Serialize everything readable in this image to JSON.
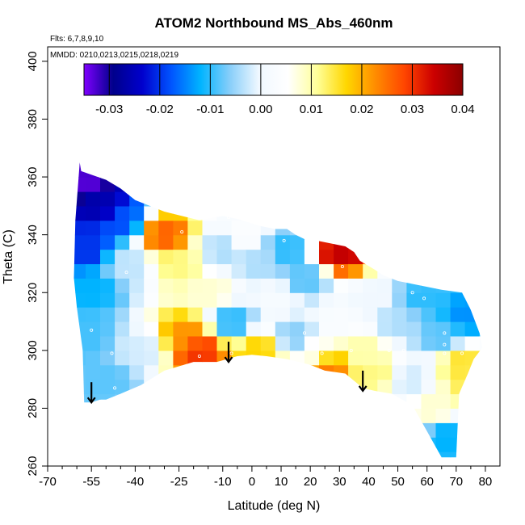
{
  "chart_data": {
    "type": "heatmap",
    "title": "ATOM2 Northbound MS_Abs_460nm",
    "subtitle_flights": "Flts: 6,7,8,9,10",
    "subtitle_dates": "MMDD: 0210,0213,0215,0218,0219",
    "xlabel": "Latitude (deg N)",
    "ylabel": "Theta (C)",
    "xlim": [
      -70,
      85
    ],
    "ylim": [
      260,
      405
    ],
    "x_ticks": [
      -70,
      -55,
      -40,
      -25,
      -10,
      0,
      10,
      20,
      30,
      40,
      50,
      60,
      70,
      80
    ],
    "x_tick_labels": [
      "-70",
      "-55",
      "-40",
      "-25",
      "-10",
      "0",
      "10",
      "20",
      "30",
      "40",
      "50",
      "60",
      "70",
      "80"
    ],
    "x_minor_ticks": [
      -65,
      -60,
      -50,
      -45,
      -35,
      -30,
      -20,
      -15,
      -5,
      5,
      15,
      25,
      35,
      45,
      55,
      65,
      75
    ],
    "y_ticks": [
      260,
      280,
      300,
      320,
      340,
      360,
      380,
      400
    ],
    "y_tick_labels": [
      "260",
      "280",
      "300",
      "320",
      "340",
      "360",
      "380",
      "400"
    ],
    "colorbar": {
      "min": -0.035,
      "max": 0.04,
      "ticks": [
        -0.03,
        -0.02,
        -0.01,
        0.0,
        0.01,
        0.02,
        0.03,
        0.04
      ],
      "tick_labels": [
        "-0.03",
        "-0.02",
        "-0.01",
        "0.00",
        "0.01",
        "0.02",
        "0.03",
        "0.04"
      ],
      "colors": [
        "#7F00FF",
        "#00008B",
        "#0000CD",
        "#0055FF",
        "#00B4FF",
        "#87CEFA",
        "#F0F8FF",
        "#FFFFFF",
        "#FFFF99",
        "#FFD700",
        "#FF8C00",
        "#FF4500",
        "#CC0000",
        "#8B0000"
      ]
    },
    "boundary": {
      "lat": [
        -59,
        -58.5,
        -50,
        -45,
        -40,
        -30,
        -18,
        -10,
        -5,
        3,
        8,
        10,
        12,
        15,
        18,
        22,
        27,
        32,
        35,
        37,
        42,
        45,
        50,
        55,
        60,
        65,
        72,
        73.5,
        75,
        76.5,
        78,
        79,
        76,
        74,
        71,
        70,
        65,
        60,
        55,
        48,
        42,
        38,
        32,
        25,
        20,
        12,
        5,
        0,
        -5,
        -12,
        -20,
        -30,
        -38,
        -45,
        -50,
        -52,
        -55,
        -57.5,
        -58,
        -60,
        -61,
        -60.5
      ],
      "theta": [
        365,
        362,
        359,
        356,
        352,
        348,
        345,
        346.5,
        345.5,
        343,
        342,
        342,
        342,
        340,
        338.5,
        338,
        337,
        336,
        334,
        331,
        328,
        326,
        324,
        323,
        322,
        321,
        320,
        317,
        314,
        310,
        306,
        301,
        297,
        292,
        285,
        263,
        263,
        272,
        281,
        285,
        286,
        287,
        292,
        293,
        295,
        297,
        298,
        298.5,
        298,
        296,
        296,
        293,
        288,
        285,
        283,
        283,
        282,
        282,
        300,
        315,
        325,
        345
      ]
    },
    "field_samples": [
      {
        "lat": -57,
        "theta": 358,
        "value": -0.033
      },
      {
        "lat": -52,
        "theta": 350,
        "value": -0.026
      },
      {
        "lat": -45,
        "theta": 345,
        "value": -0.018
      },
      {
        "lat": -56,
        "theta": 335,
        "value": -0.02
      },
      {
        "lat": -55,
        "theta": 322,
        "value": -0.012
      },
      {
        "lat": -57,
        "theta": 305,
        "value": -0.009
      },
      {
        "lat": -50,
        "theta": 290,
        "value": -0.008
      },
      {
        "lat": -43,
        "theta": 330,
        "value": -0.003
      },
      {
        "lat": -38,
        "theta": 300,
        "value": -0.002
      },
      {
        "lat": -30,
        "theta": 340,
        "value": 0.026
      },
      {
        "lat": -25,
        "theta": 330,
        "value": 0.012
      },
      {
        "lat": -22,
        "theta": 305,
        "value": 0.022
      },
      {
        "lat": -18,
        "theta": 300,
        "value": 0.03
      },
      {
        "lat": -14,
        "theta": 320,
        "value": 0.008
      },
      {
        "lat": -10,
        "theta": 335,
        "value": -0.004
      },
      {
        "lat": -7,
        "theta": 310,
        "value": -0.01
      },
      {
        "lat": -3,
        "theta": 340,
        "value": 0.004
      },
      {
        "lat": 3,
        "theta": 330,
        "value": -0.004
      },
      {
        "lat": 2,
        "theta": 300,
        "value": 0.017
      },
      {
        "lat": 8,
        "theta": 318,
        "value": 0.002
      },
      {
        "lat": 12,
        "theta": 335,
        "value": -0.01
      },
      {
        "lat": 15,
        "theta": 305,
        "value": -0.006
      },
      {
        "lat": 18,
        "theta": 325,
        "value": -0.008
      },
      {
        "lat": 22,
        "theta": 300,
        "value": 0.006
      },
      {
        "lat": 26,
        "theta": 294,
        "value": 0.024
      },
      {
        "lat": 30,
        "theta": 334,
        "value": 0.035
      },
      {
        "lat": 30,
        "theta": 310,
        "value": 0.003
      },
      {
        "lat": 38,
        "theta": 300,
        "value": 0.01
      },
      {
        "lat": 42,
        "theta": 318,
        "value": 0.0
      },
      {
        "lat": 42,
        "theta": 292,
        "value": 0.012
      },
      {
        "lat": 50,
        "theta": 310,
        "value": -0.004
      },
      {
        "lat": 54,
        "theta": 290,
        "value": -0.002
      },
      {
        "lat": 58,
        "theta": 318,
        "value": -0.01
      },
      {
        "lat": 62,
        "theta": 280,
        "value": 0.008
      },
      {
        "lat": 65,
        "theta": 305,
        "value": -0.008
      },
      {
        "lat": 67,
        "theta": 270,
        "value": -0.012
      },
      {
        "lat": 72,
        "theta": 296,
        "value": 0.015
      },
      {
        "lat": 73,
        "theta": 312,
        "value": -0.014
      },
      {
        "lat": 76,
        "theta": 288,
        "value": 0.014
      }
    ],
    "sample_points": [
      {
        "lat": -55,
        "theta": 307
      },
      {
        "lat": -48,
        "theta": 299
      },
      {
        "lat": -47,
        "theta": 287
      },
      {
        "lat": -24,
        "theta": 341
      },
      {
        "lat": -8,
        "theta": 346
      },
      {
        "lat": -18,
        "theta": 298
      },
      {
        "lat": -7,
        "theta": 299
      },
      {
        "lat": 11,
        "theta": 338
      },
      {
        "lat": 18,
        "theta": 306
      },
      {
        "lat": 28,
        "theta": 292
      },
      {
        "lat": 31,
        "theta": 329
      },
      {
        "lat": 34,
        "theta": 300
      },
      {
        "lat": 47,
        "theta": 300
      },
      {
        "lat": 52,
        "theta": 300
      },
      {
        "lat": 55,
        "theta": 320
      },
      {
        "lat": 59,
        "theta": 318
      },
      {
        "lat": 66,
        "theta": 306
      },
      {
        "lat": 66,
        "theta": 302
      },
      {
        "lat": 66,
        "theta": 299
      },
      {
        "lat": 72,
        "theta": 299
      },
      {
        "lat": 71,
        "theta": 267
      },
      {
        "lat": -43,
        "theta": 327
      },
      {
        "lat": 24,
        "theta": 299
      }
    ],
    "arrows": [
      {
        "lat": -55,
        "theta_top": 289,
        "theta_tip": 282
      },
      {
        "lat": -8,
        "theta_top": 303,
        "theta_tip": 296
      },
      {
        "lat": 38,
        "theta_top": 293,
        "theta_tip": 286
      }
    ]
  }
}
